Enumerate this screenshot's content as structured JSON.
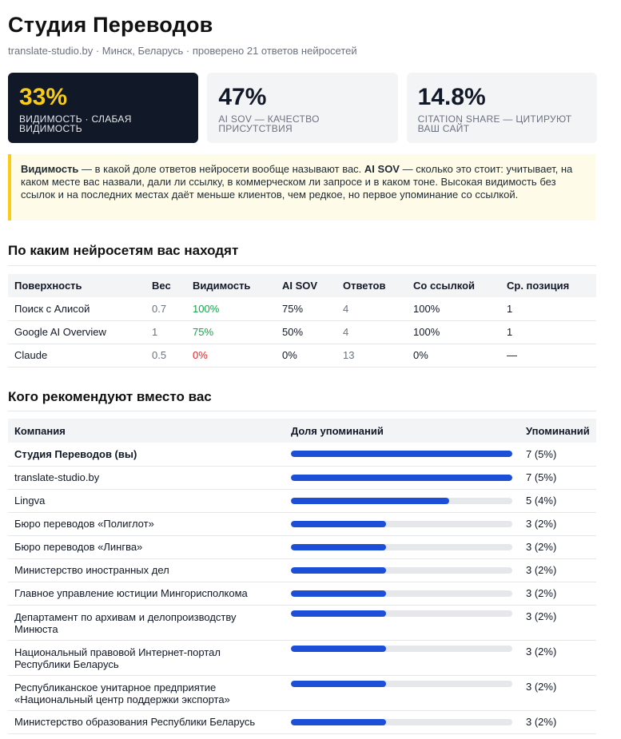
{
  "header": {
    "title": "Студия Переводов",
    "subtitle": "translate-studio.by · Минск, Беларусь · проверено 21 ответов нейросетей"
  },
  "cards": [
    {
      "value": "33%",
      "label": "Видимость · слабая видимость"
    },
    {
      "value": "47%",
      "label": "AI SOV — качество присутствия"
    },
    {
      "value": "14.8%",
      "label": "Citation share — цитируют ваш сайт"
    }
  ],
  "note": {
    "term1": "Видимость",
    "text1": " — в какой доле ответов нейросети вообще называют вас. ",
    "term2": "AI SOV",
    "text2": " — сколько это стоит: учитывает, на каком месте вас назвали, дали ли ссылку, в коммерческом ли запросе и в каком тоне. Высокая видимость без ссылок и на последних местах даёт меньше клиентов, чем редкое, но первое упоминание со ссылкой."
  },
  "surfaces": {
    "title": "По каким нейросетям вас находят",
    "columns": [
      "Поверхность",
      "Вес",
      "Видимость",
      "AI SOV",
      "Ответов",
      "Со ссылкой",
      "Ср. позиция"
    ],
    "rows": [
      {
        "surface": "Поиск с Алисой",
        "weight": "0.7",
        "visibility": "100%",
        "sov": "75%",
        "answers": "4",
        "linked": "100%",
        "position": "1"
      },
      {
        "surface": "Google AI Overview",
        "weight": "1",
        "visibility": "75%",
        "sov": "50%",
        "answers": "4",
        "linked": "100%",
        "position": "1"
      },
      {
        "surface": "Claude",
        "weight": "0.5",
        "visibility": "0%",
        "sov": "0%",
        "answers": "13",
        "linked": "0%",
        "position": "—"
      }
    ]
  },
  "competitors": {
    "title": "Кого рекомендуют вместо вас",
    "columns": [
      "Компания",
      "Доля упоминаний",
      "Упоминаний"
    ],
    "rows": [
      {
        "name": "Студия Переводов (вы)",
        "share": 1.0,
        "count": "7 (5%)"
      },
      {
        "name": "translate-studio.by",
        "share": 1.0,
        "count": "7 (5%)"
      },
      {
        "name": "Lingva",
        "share": 0.714,
        "count": "5 (4%)"
      },
      {
        "name": "Бюро переводов «Полиглот»",
        "share": 0.429,
        "count": "3 (2%)"
      },
      {
        "name": "Бюро переводов «Лингва»",
        "share": 0.429,
        "count": "3 (2%)"
      },
      {
        "name": "Министерство иностранных дел",
        "share": 0.429,
        "count": "3 (2%)"
      },
      {
        "name": "Главное управление юстиции Мингорисполкома",
        "share": 0.429,
        "count": "3 (2%)"
      },
      {
        "name": "Департамент по архивам и делопроизводству Минюста",
        "share": 0.429,
        "count": "3 (2%)"
      },
      {
        "name": "Национальный правовой Интернет-портал Республики Беларусь",
        "share": 0.429,
        "count": "3 (2%)"
      },
      {
        "name": "Республиканское унитарное предприятие «Национальный центр поддержки экспорта»",
        "share": 0.429,
        "count": "3 (2%)"
      },
      {
        "name": "Министерство образования Республики Беларусь",
        "share": 0.429,
        "count": "3 (2%)"
      }
    ]
  },
  "colors": {
    "bar_fill": "#1d4ed8",
    "bar_track": "#e5e7eb",
    "good": "#16a34a",
    "bad": "#dc2626",
    "accent": "#facc15"
  }
}
